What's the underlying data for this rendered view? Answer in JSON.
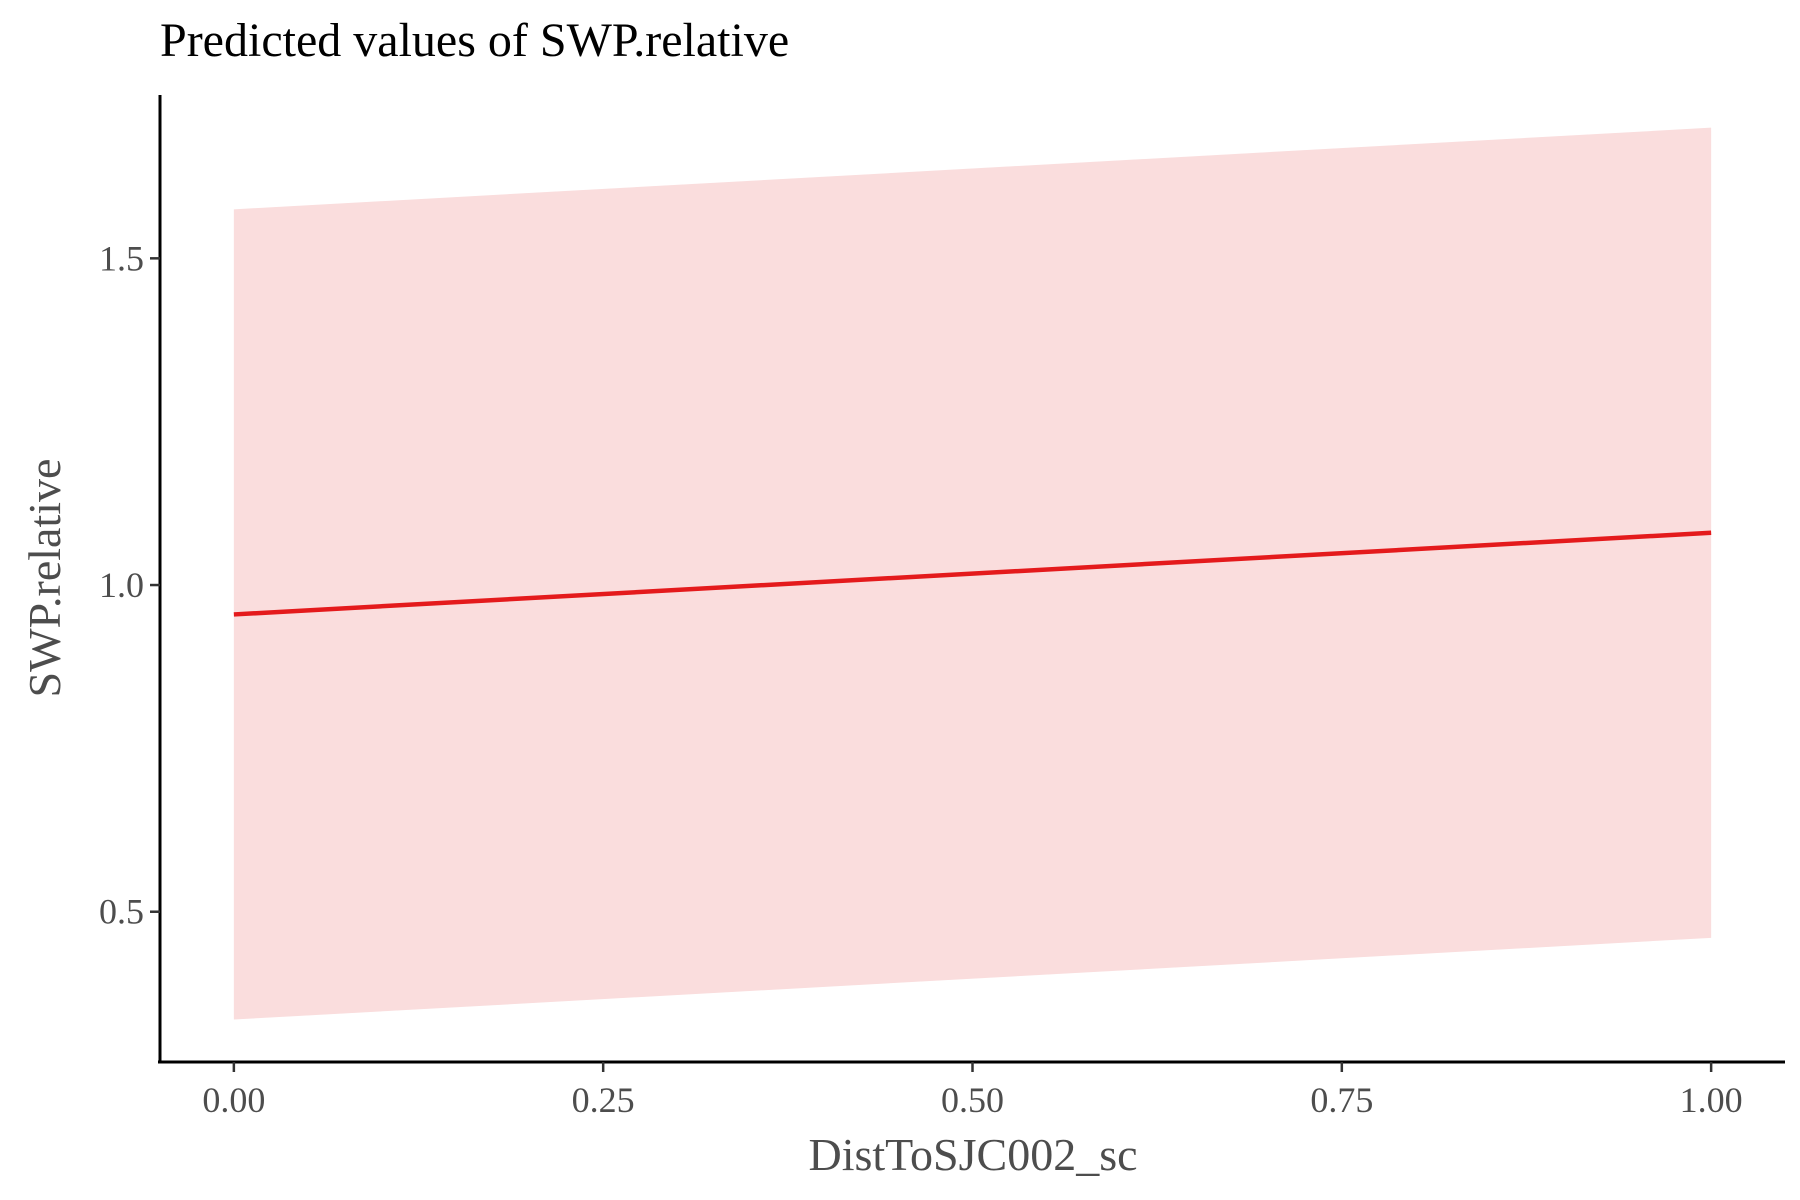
{
  "chart_data": {
    "type": "line",
    "title": "Predicted values of SWP.relative",
    "xlabel": "DistToSJC002_sc",
    "ylabel": "SWP.relative",
    "xlim": [
      -0.05,
      1.05
    ],
    "ylim": [
      0.27,
      1.75
    ],
    "x_ticks": [
      0.0,
      0.25,
      0.5,
      0.75,
      1.0
    ],
    "x_tick_labels": [
      "0.00",
      "0.25",
      "0.50",
      "0.75",
      "1.00"
    ],
    "y_ticks": [
      0.5,
      1.0,
      1.5
    ],
    "y_tick_labels": [
      "0.5",
      "1.0",
      "1.5"
    ],
    "grid": false,
    "series": [
      {
        "x": [
          0.0,
          1.0
        ],
        "y": [
          0.955,
          1.08
        ],
        "ci_low": [
          0.335,
          0.46
        ],
        "ci_high": [
          1.575,
          1.7
        ]
      }
    ],
    "colors": {
      "line": "#e41a1c",
      "ribbon": "#fadddd"
    }
  }
}
